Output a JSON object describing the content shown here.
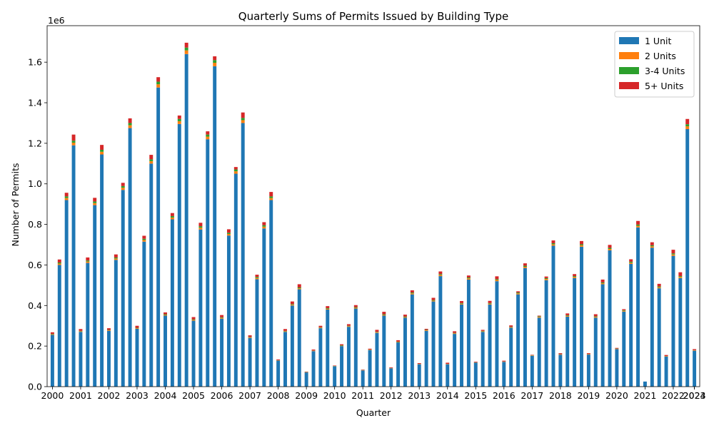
{
  "chart_data": {
    "type": "bar",
    "stacked": true,
    "title": "Quarterly Sums of Permits Issued by Building Type",
    "xlabel": "Quarter",
    "ylabel": "Number of Permits",
    "y_offset_label": "1e6",
    "ylim": [
      0,
      1.78
    ],
    "y_ticks": [
      0.0,
      0.2,
      0.4,
      0.6,
      0.8,
      1.0,
      1.2,
      1.4,
      1.6
    ],
    "y_tick_labels": [
      "0.0",
      "0.2",
      "0.4",
      "0.6",
      "0.8",
      "1.0",
      "1.2",
      "1.4",
      "1.6"
    ],
    "x_tick_labels": [
      "2000",
      "2001",
      "2002",
      "2003",
      "2004",
      "2005",
      "2006",
      "2007",
      "2008",
      "2009",
      "2010",
      "2011",
      "2012",
      "2013",
      "2014",
      "2015",
      "2016",
      "2017",
      "2018",
      "2019",
      "2020",
      "2021",
      "2022",
      "2023",
      "2024"
    ],
    "quarters_per_year": 4,
    "legend_position": "upper right",
    "grid": false,
    "series": [
      {
        "name": "1 Unit",
        "color": "#1f77b4",
        "values": [
          0.255,
          0.6,
          0.92,
          1.19,
          0.27,
          0.61,
          0.895,
          1.145,
          0.275,
          0.625,
          0.97,
          1.275,
          0.285,
          0.715,
          1.1,
          1.475,
          0.35,
          0.825,
          1.295,
          1.64,
          0.325,
          0.775,
          1.22,
          1.58,
          0.335,
          0.745,
          1.05,
          1.3,
          0.24,
          0.53,
          0.78,
          0.92,
          0.128,
          0.27,
          0.4,
          0.48,
          0.07,
          0.175,
          0.288,
          0.38,
          0.1,
          0.2,
          0.295,
          0.385,
          0.08,
          0.18,
          0.265,
          0.35,
          0.09,
          0.218,
          0.34,
          0.455,
          0.11,
          0.275,
          0.42,
          0.545,
          0.11,
          0.26,
          0.405,
          0.528,
          0.118,
          0.27,
          0.405,
          0.52,
          0.122,
          0.29,
          0.455,
          0.585,
          0.152,
          0.34,
          0.525,
          0.695,
          0.157,
          0.345,
          0.535,
          0.69,
          0.158,
          0.34,
          0.505,
          0.672,
          0.185,
          0.37,
          0.605,
          0.785,
          0.025,
          0.685,
          0.485,
          0.148,
          0.645,
          0.535,
          1.27,
          0.177
        ]
      },
      {
        "name": "2 Units",
        "color": "#ff7f0e",
        "values": [
          0.003,
          0.007,
          0.01,
          0.013,
          0.003,
          0.007,
          0.01,
          0.013,
          0.003,
          0.007,
          0.011,
          0.014,
          0.003,
          0.008,
          0.012,
          0.016,
          0.004,
          0.009,
          0.014,
          0.018,
          0.004,
          0.009,
          0.013,
          0.017,
          0.004,
          0.008,
          0.012,
          0.014,
          0.003,
          0.006,
          0.009,
          0.01,
          0.001,
          0.003,
          0.004,
          0.005,
          0.001,
          0.002,
          0.003,
          0.004,
          0.001,
          0.002,
          0.003,
          0.004,
          0.001,
          0.002,
          0.003,
          0.004,
          0.001,
          0.002,
          0.003,
          0.005,
          0.001,
          0.003,
          0.004,
          0.006,
          0.001,
          0.003,
          0.004,
          0.006,
          0.001,
          0.003,
          0.004,
          0.006,
          0.001,
          0.003,
          0.005,
          0.006,
          0.002,
          0.004,
          0.006,
          0.007,
          0.002,
          0.004,
          0.006,
          0.007,
          0.002,
          0.004,
          0.005,
          0.007,
          0.002,
          0.004,
          0.006,
          0.008,
          0.0,
          0.007,
          0.005,
          0.002,
          0.007,
          0.006,
          0.014,
          0.002
        ]
      },
      {
        "name": "3-4 Units",
        "color": "#2ca02c",
        "values": [
          0.002,
          0.005,
          0.008,
          0.01,
          0.002,
          0.005,
          0.008,
          0.01,
          0.002,
          0.005,
          0.008,
          0.011,
          0.002,
          0.006,
          0.009,
          0.013,
          0.003,
          0.007,
          0.011,
          0.014,
          0.003,
          0.007,
          0.01,
          0.013,
          0.003,
          0.006,
          0.009,
          0.011,
          0.002,
          0.005,
          0.007,
          0.008,
          0.001,
          0.002,
          0.003,
          0.004,
          0.001,
          0.001,
          0.002,
          0.003,
          0.001,
          0.002,
          0.002,
          0.003,
          0.001,
          0.001,
          0.002,
          0.003,
          0.001,
          0.002,
          0.003,
          0.004,
          0.001,
          0.002,
          0.003,
          0.004,
          0.001,
          0.002,
          0.003,
          0.004,
          0.001,
          0.002,
          0.003,
          0.004,
          0.001,
          0.002,
          0.004,
          0.005,
          0.001,
          0.003,
          0.004,
          0.005,
          0.001,
          0.003,
          0.004,
          0.005,
          0.001,
          0.003,
          0.004,
          0.005,
          0.001,
          0.003,
          0.005,
          0.006,
          0.0,
          0.005,
          0.004,
          0.001,
          0.005,
          0.004,
          0.01,
          0.001
        ]
      },
      {
        "name": "5+ Units",
        "color": "#d62728",
        "values": [
          0.008,
          0.015,
          0.018,
          0.03,
          0.009,
          0.015,
          0.018,
          0.024,
          0.008,
          0.015,
          0.016,
          0.023,
          0.01,
          0.015,
          0.022,
          0.022,
          0.009,
          0.015,
          0.017,
          0.024,
          0.011,
          0.017,
          0.016,
          0.019,
          0.011,
          0.017,
          0.012,
          0.027,
          0.008,
          0.011,
          0.015,
          0.022,
          0.004,
          0.009,
          0.013,
          0.016,
          0.002,
          0.005,
          0.007,
          0.01,
          0.002,
          0.005,
          0.008,
          0.01,
          0.002,
          0.004,
          0.01,
          0.012,
          0.003,
          0.007,
          0.009,
          0.011,
          0.004,
          0.005,
          0.011,
          0.013,
          0.006,
          0.008,
          0.01,
          0.01,
          0.003,
          0.005,
          0.011,
          0.014,
          0.004,
          0.007,
          0.006,
          0.012,
          0.002,
          0.003,
          0.008,
          0.014,
          0.005,
          0.009,
          0.01,
          0.016,
          0.004,
          0.01,
          0.014,
          0.015,
          0.003,
          0.005,
          0.012,
          0.018,
          0.0,
          0.015,
          0.013,
          0.005,
          0.018,
          0.019,
          0.026,
          0.005
        ]
      }
    ]
  }
}
